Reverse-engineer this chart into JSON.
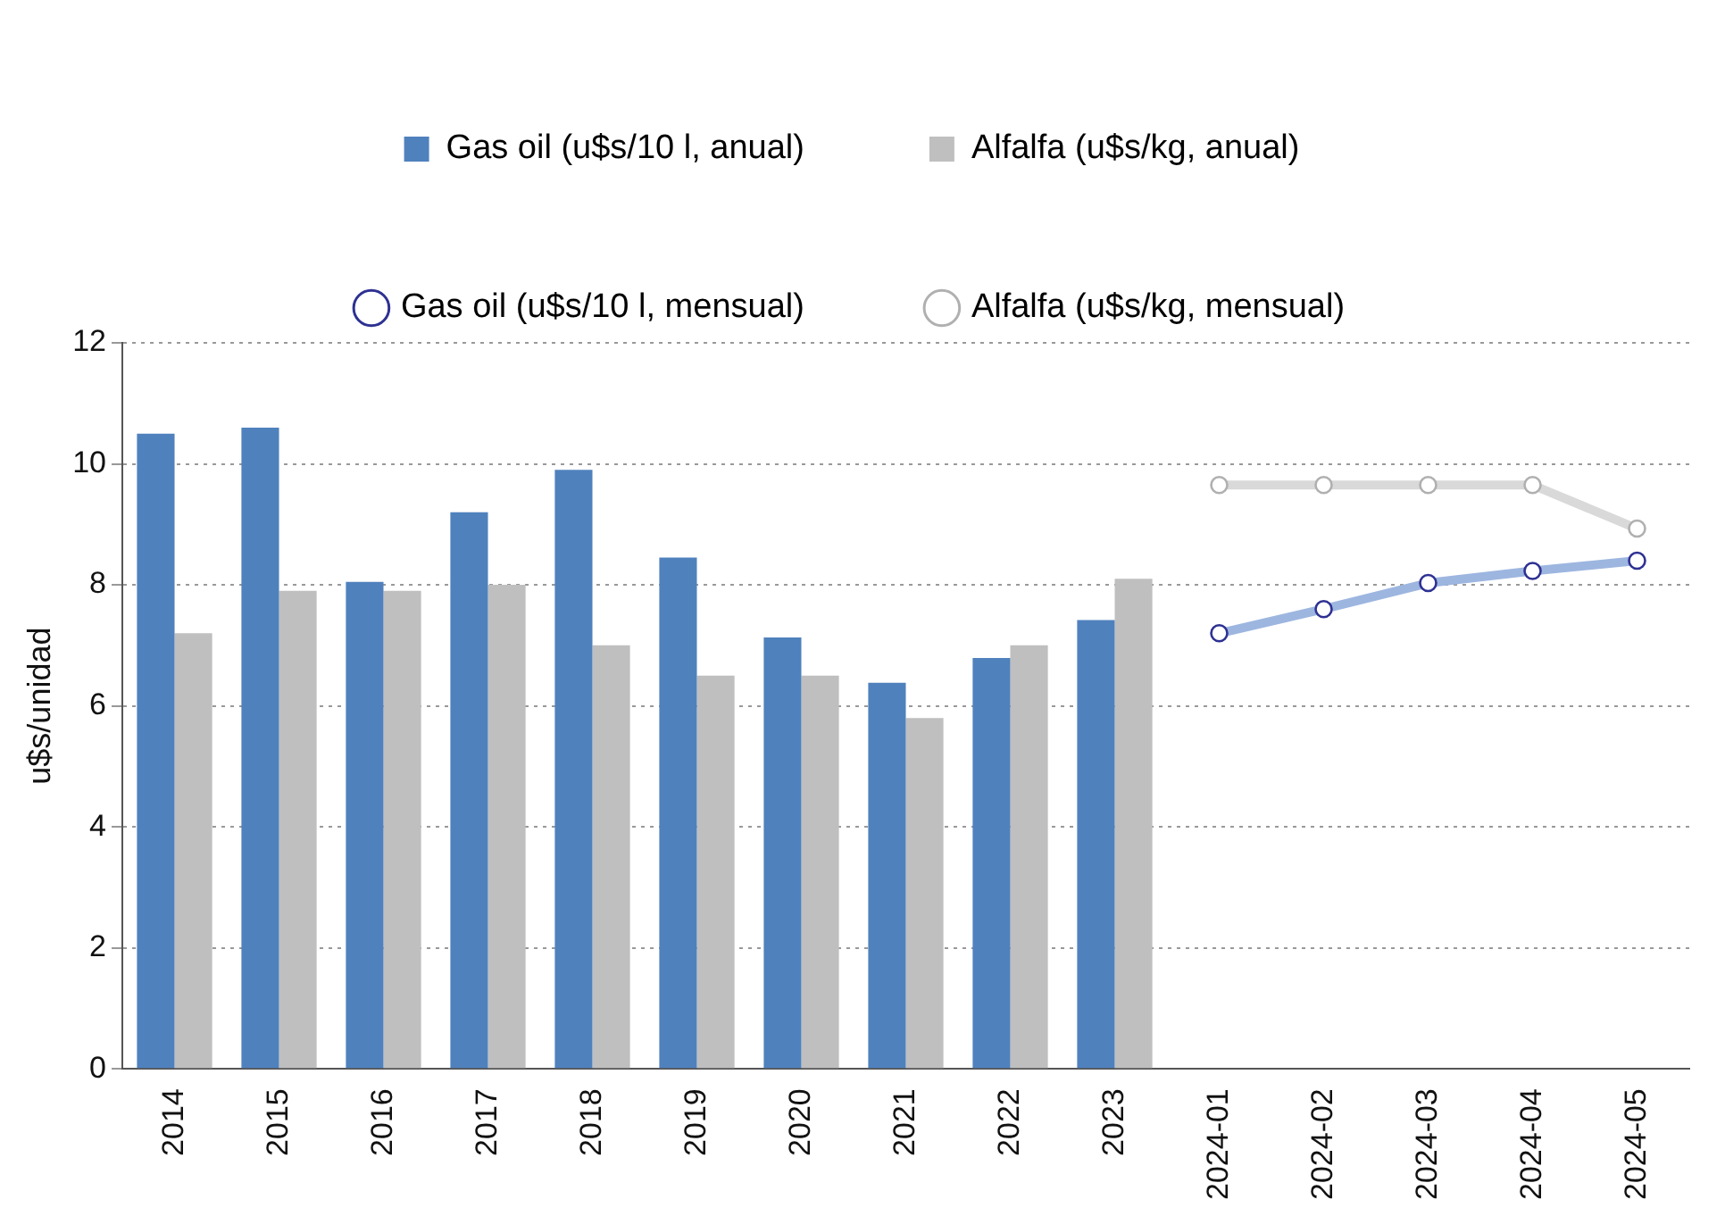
{
  "chart_data": {
    "type": "bar",
    "ylabel": "u$s/unidad",
    "categories": [
      "2014",
      "2015",
      "2016",
      "2017",
      "2018",
      "2019",
      "2020",
      "2021",
      "2022",
      "2023",
      "2024-01",
      "2024-02",
      "2024-03",
      "2024-04",
      "2024-05"
    ],
    "series": [
      {
        "name": "Gas oil (u$s/10 l, anual)",
        "color": "#4f81bd",
        "values": [
          10.5,
          10.6,
          8.05,
          9.2,
          9.9,
          8.45,
          7.13,
          6.38,
          6.79,
          7.42,
          null,
          null,
          null,
          null,
          null
        ]
      },
      {
        "name": "Alfalfa (u$s/kg, anual)",
        "color": "#bfbfbf",
        "values": [
          7.2,
          7.9,
          7.9,
          8.0,
          7.0,
          6.5,
          6.5,
          5.8,
          7.0,
          8.1,
          null,
          null,
          null,
          null,
          null
        ]
      },
      {
        "name": "Gas oil (u$s/10 l, mensual)",
        "type": "line",
        "color": "#9db6e0",
        "values": [
          null,
          null,
          null,
          null,
          null,
          null,
          null,
          null,
          null,
          null,
          7.2,
          7.6,
          8.03,
          8.23,
          8.4
        ]
      },
      {
        "name": "Alfalfa (u$s/kg, mensual)",
        "type": "line",
        "color": "#d9d9d9",
        "values": [
          null,
          null,
          null,
          null,
          null,
          null,
          null,
          null,
          null,
          null,
          9.65,
          9.65,
          9.65,
          9.65,
          8.93
        ]
      }
    ],
    "ylim": [
      0,
      12
    ],
    "yticks": [
      0,
      2,
      4,
      6,
      8,
      10,
      12
    ],
    "grid": "y",
    "legend": "top",
    "marker": "circle",
    "line_style": "solid"
  }
}
